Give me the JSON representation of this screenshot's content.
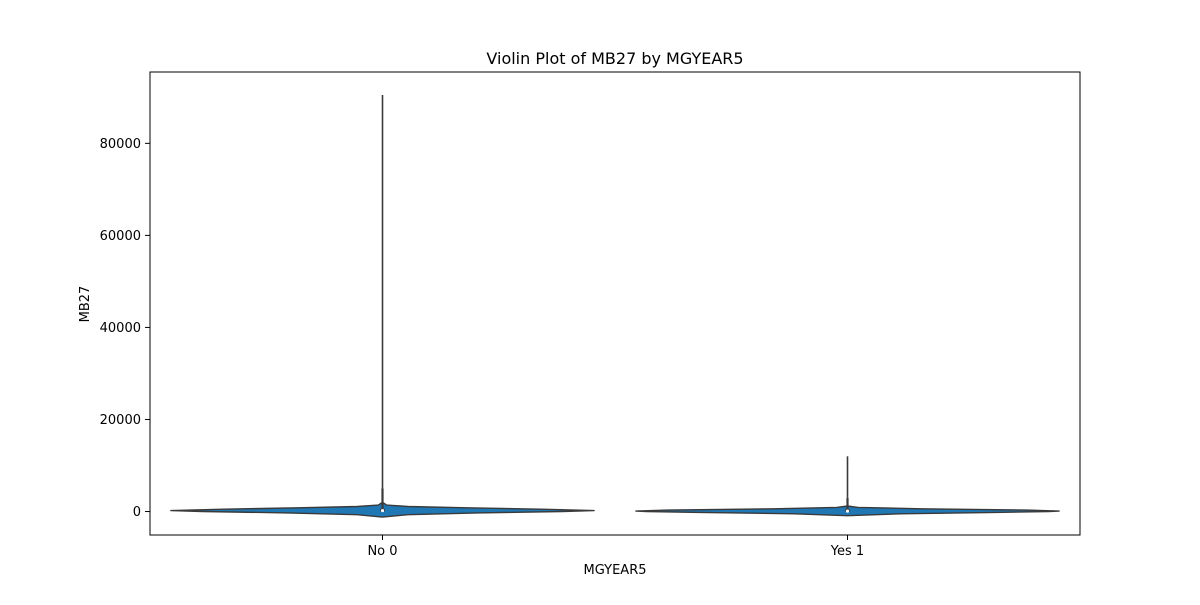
{
  "chart_data": {
    "type": "violin",
    "title": "Violin Plot of MB27 by MGYEAR5",
    "xlabel": "MGYEAR5",
    "ylabel": "MB27",
    "categories": [
      "No 0",
      "Yes 1"
    ],
    "y_ticks": [
      0,
      20000,
      40000,
      60000,
      80000
    ],
    "ylim": [
      -5100,
      95500
    ],
    "grid": false,
    "violin_color": "#1f77b4",
    "edge_color": "#3a3a3a",
    "violins": [
      {
        "category": "No 0",
        "min": 0,
        "max": 90500,
        "q1": 50,
        "median": 200,
        "q3": 600,
        "whisker_low": 0,
        "whisker_high": 5000,
        "density": [
          [
            -1200,
            0.0
          ],
          [
            -700,
            0.12
          ],
          [
            -300,
            0.45
          ],
          [
            0,
            0.85
          ],
          [
            200,
            1.0
          ],
          [
            500,
            0.75
          ],
          [
            800,
            0.4
          ],
          [
            1100,
            0.12
          ],
          [
            1400,
            0.02
          ],
          [
            2000,
            0.0
          ]
        ]
      },
      {
        "category": "Yes 1",
        "min": 0,
        "max": 12000,
        "q1": 0,
        "median": 100,
        "q3": 500,
        "whisker_low": 0,
        "whisker_high": 3000,
        "density": [
          [
            -900,
            0.0
          ],
          [
            -500,
            0.25
          ],
          [
            -200,
            0.7
          ],
          [
            0,
            0.95
          ],
          [
            100,
            1.0
          ],
          [
            300,
            0.85
          ],
          [
            600,
            0.35
          ],
          [
            900,
            0.05
          ],
          [
            1200,
            0.0
          ]
        ]
      }
    ]
  }
}
